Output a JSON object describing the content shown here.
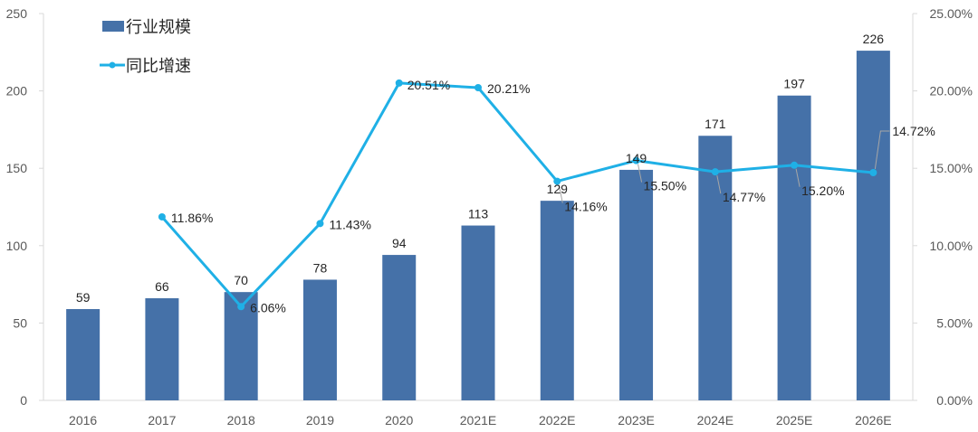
{
  "colors": {
    "bar": "#4571a8",
    "line": "#1fb0e6",
    "axis": "#d9d9d9",
    "text": "#262626",
    "tick": "#595959",
    "leader": "#a6a6a6"
  },
  "legend": {
    "bar_label": "行业规模",
    "line_label": "同比增速"
  },
  "chart_data": {
    "type": "bar",
    "categories": [
      "2016",
      "2017",
      "2018",
      "2019",
      "2020",
      "2021E",
      "2022E",
      "2023E",
      "2024E",
      "2025E",
      "2026E"
    ],
    "series": [
      {
        "name": "行业规模",
        "type": "bar",
        "axis": "left",
        "values": [
          59,
          66,
          70,
          78,
          94,
          113,
          129,
          149,
          171,
          197,
          226
        ],
        "labels": [
          "59",
          "66",
          "70",
          "78",
          "94",
          "113",
          "129",
          "149",
          "171",
          "197",
          "226"
        ]
      },
      {
        "name": "同比增速",
        "type": "line",
        "axis": "right",
        "values": [
          null,
          11.86,
          6.06,
          11.43,
          20.51,
          20.21,
          14.16,
          15.5,
          14.77,
          15.2,
          14.72
        ],
        "labels": [
          "",
          "11.86%",
          "6.06%",
          "11.43%",
          "20.51%",
          "20.21%",
          "14.16%",
          "15.50%",
          "14.77%",
          "15.20%",
          "14.72%"
        ]
      }
    ],
    "y_left": {
      "min": 0,
      "max": 250,
      "ticks": [
        "0",
        "50",
        "100",
        "150",
        "200",
        "250"
      ]
    },
    "y_right": {
      "min": 0,
      "max": 25,
      "ticks": [
        "0.00%",
        "5.00%",
        "10.00%",
        "15.00%",
        "20.00%",
        "25.00%"
      ]
    },
    "grid": false,
    "legend_position": "top-left"
  }
}
